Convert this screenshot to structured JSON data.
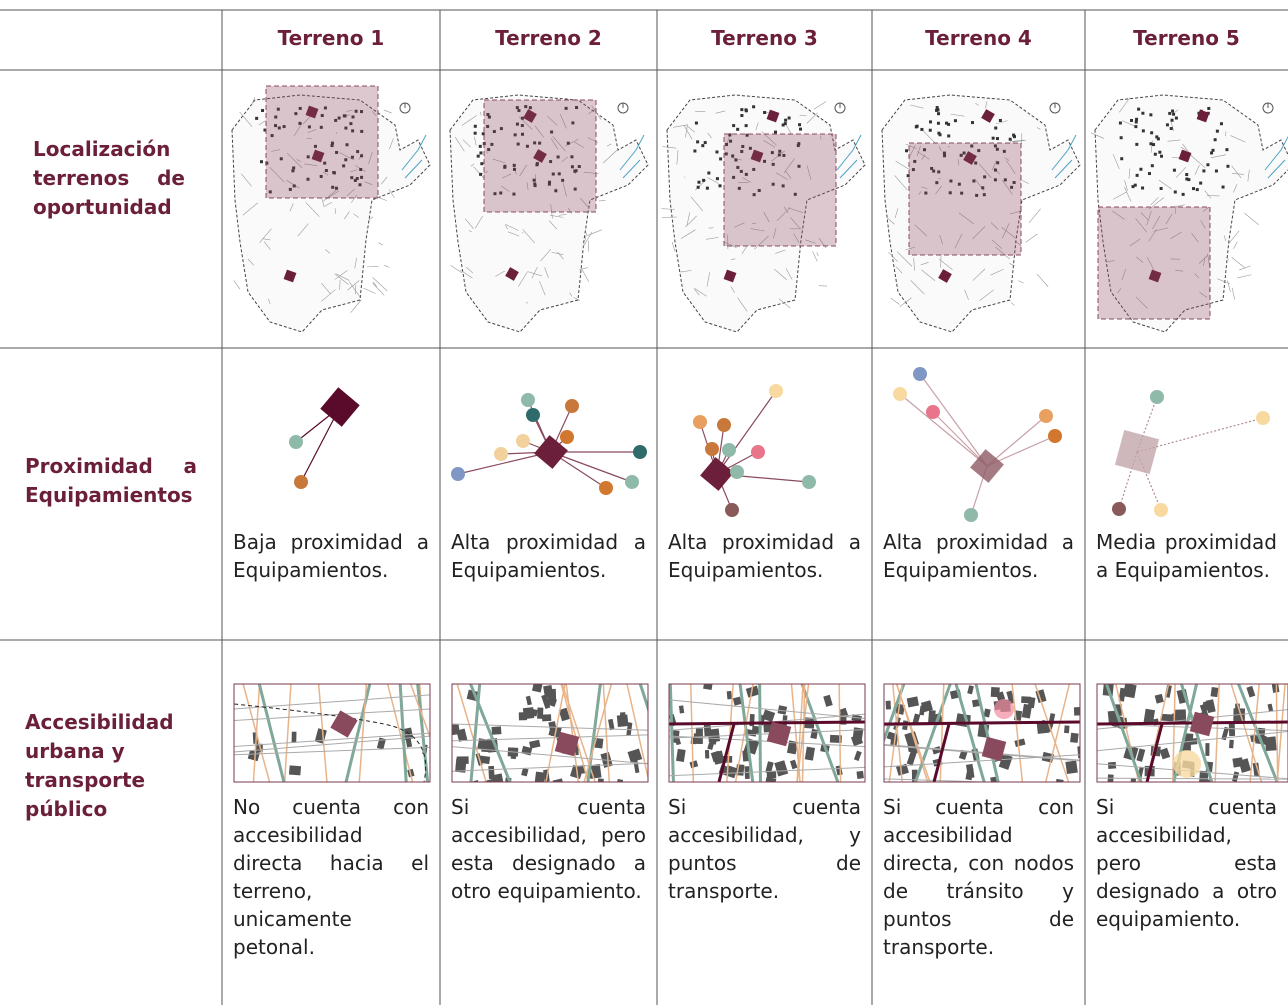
{
  "header": {
    "columns": [
      "Terreno 1",
      "Terreno 2",
      "Terreno 3",
      "Terreno 4",
      "Terreno 5"
    ]
  },
  "rows": [
    {
      "label": "Localización terrenos de oportunidad"
    },
    {
      "label": "Proximidad a Equipamientos",
      "cells": [
        "Baja proximidad a Equipamientos.",
        "Alta proximidad a Equipamientos.",
        "Alta proximidad a Equipamientos.",
        "Alta proximidad a Equipamientos.",
        "Media proximidad a Equipamientos."
      ]
    },
    {
      "label": "Accesibilidad urbana y transporte público",
      "cells": [
        "No cuenta con accesibilidad directa hacia el terreno, unicamente petonal.",
        "Si cuenta accesibilidad, pero esta designado a otro equipamiento.",
        "Si cuenta accesibilidad, y puntos de transporte.",
        "Si cuenta con accesibilidad directa, con nodos de tránsito y puntos de transporte.",
        "Si cuenta accesibilidad, pero esta designado a otro equipamiento."
      ]
    }
  ]
}
